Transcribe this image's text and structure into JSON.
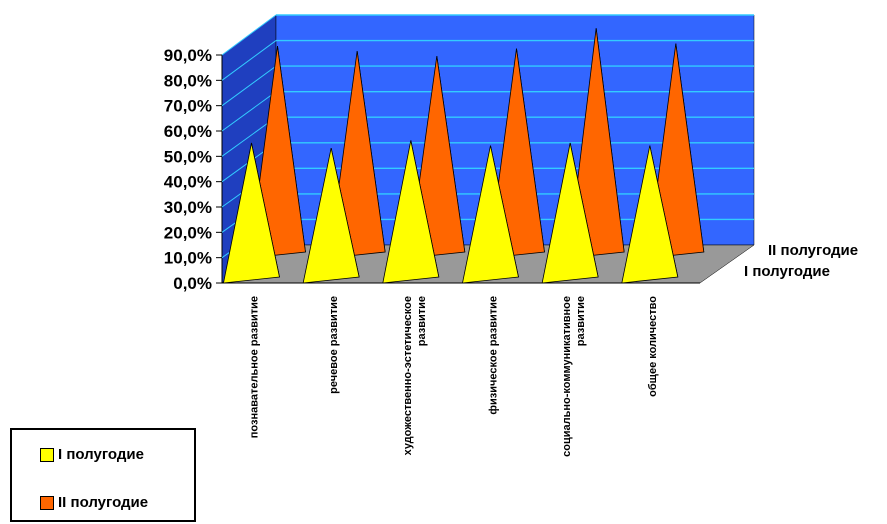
{
  "chart_data": {
    "type": "bar",
    "style": "3d-pyramid",
    "categories": [
      [
        "познавательное развитие"
      ],
      [
        "речевое развитие"
      ],
      [
        "художественно-эстетическое",
        "развитие"
      ],
      [
        "физическое развитие"
      ],
      [
        "социально-коммуникативное",
        "развитие"
      ],
      [
        "общее количество"
      ]
    ],
    "series": [
      {
        "name": "I полугодие",
        "values": [
          0.6,
          0.58,
          0.61,
          0.59,
          0.6,
          0.59
        ],
        "color": "#ffff00",
        "shade": "#c8c800"
      },
      {
        "name": "II полугодие",
        "values": [
          0.88,
          0.86,
          0.84,
          0.87,
          0.95,
          0.89
        ],
        "color": "#ff6600",
        "shade": "#b34800"
      }
    ],
    "yticks": [
      "0,0%",
      "10,0%",
      "20,0%",
      "30,0%",
      "40,0%",
      "50,0%",
      "60,0%",
      "70,0%",
      "80,0%",
      "90,0%"
    ],
    "ylim": [
      0,
      0.9
    ],
    "depth_labels": [
      "II полугодие",
      "I полугодие"
    ],
    "grid": true,
    "legend_position": "bottom-left",
    "wall_color": "#3366ff",
    "floor_color": "#999999"
  }
}
